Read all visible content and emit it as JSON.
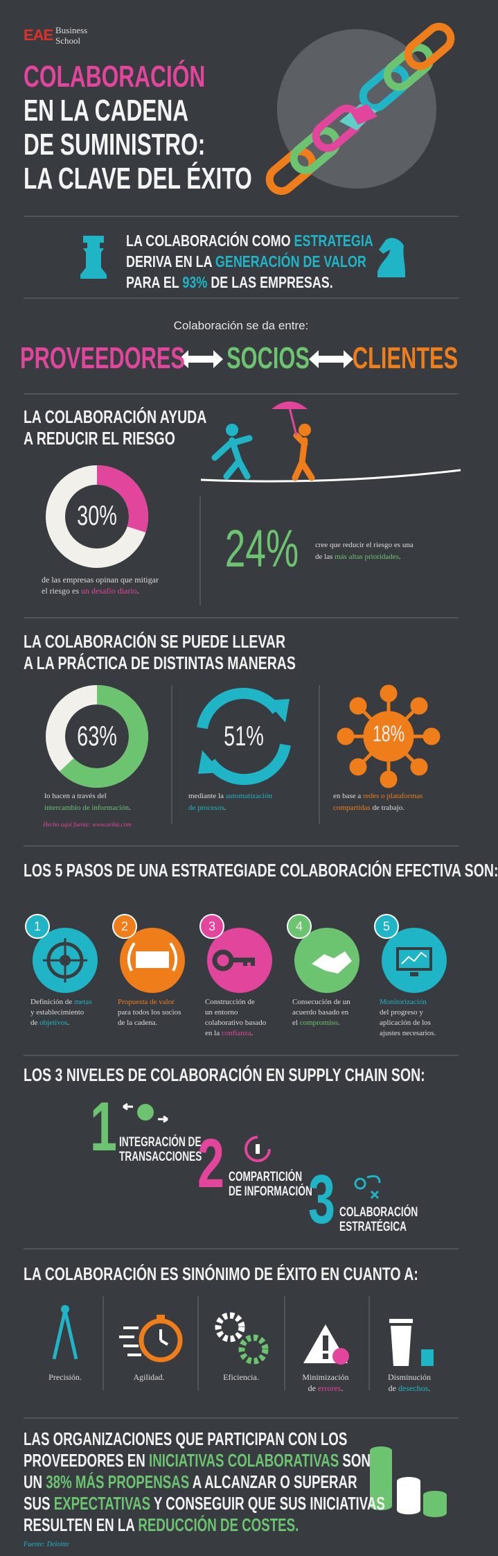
{
  "logo": {
    "brand": "EAE",
    "name_lines": [
      "Business",
      "School"
    ]
  },
  "title": {
    "lines": [
      "COLABORACIÓN",
      "EN LA CADENA",
      "DE SUMINISTRO:",
      "LA CLAVE DEL ÉXITO"
    ],
    "accent": "#e2459c"
  },
  "banner": {
    "lines": [
      [
        "LA COLABORACIÓN COMO ",
        {
          "text": "ESTRATEGIA",
          "color": "#1fb5c7"
        }
      ],
      [
        "DERIVA EN LA ",
        {
          "text": "GENERACIÓN DE VALOR",
          "color": "#1fb5c7"
        }
      ],
      [
        "PARA EL ",
        {
          "text": "93%",
          "color": "#1fb5c7"
        },
        " DE LAS EMPRESAS."
      ]
    ]
  },
  "partners": {
    "intro": "Colaboración se da entre:",
    "items": [
      {
        "text": "PROVEEDORES",
        "color": "#e2459c"
      },
      {
        "text": "SOCIOS",
        "color": "#6cc370"
      },
      {
        "text": "CLIENTES",
        "color": "#ef7d1a"
      }
    ]
  },
  "risk": {
    "heading": [
      "LA COLABORACIÓN AYUDA",
      "A REDUCIR EL RIESGO"
    ],
    "donut": {
      "value": 30,
      "label": "30%",
      "lim": [
        0,
        100
      ],
      "color": "#e2459c"
    },
    "donut_text": {
      "lines": [
        [
          "de las empresas opinan que mitigar"
        ],
        [
          "el riesgo es ",
          {
            "text": "un desafío diario",
            "color": "#e2459c"
          },
          "."
        ]
      ]
    },
    "stat": {
      "label": "24%",
      "color": "#6cc370"
    },
    "stat_text": {
      "lines": [
        [
          "cree que reducir el riesgo es una"
        ],
        [
          "de las ",
          {
            "text": "más altas prioridades",
            "color": "#6cc370"
          },
          "."
        ]
      ]
    }
  },
  "ways": {
    "heading": [
      "LA COLABORACIÓN SE PUEDE LLEVAR",
      "A LA PRÁCTICA DE DISTINTAS MANERAS"
    ],
    "items": [
      {
        "kind": "donut",
        "value": 63,
        "label": "63%",
        "lim": [
          0,
          100
        ],
        "color": "#6cc370",
        "lines": [
          [
            "lo hacen a través del"
          ],
          [
            {
              "text": "intercambio de información",
              "color": "#6cc370"
            },
            "."
          ]
        ]
      },
      {
        "kind": "cycle",
        "label": "51%",
        "color": "#1fb5c7",
        "lines": [
          [
            "mediante la ",
            {
              "text": "automatización",
              "color": "#1fb5c7"
            }
          ],
          [
            {
              "text": "de procesos",
              "color": "#1fb5c7"
            },
            "."
          ]
        ]
      },
      {
        "kind": "network",
        "label": "18%",
        "color": "#ef7d1a",
        "lines": [
          [
            "en base a ",
            {
              "text": "redes o plataformas",
              "color": "#ef7d1a"
            }
          ],
          [
            {
              "text": "compartidas",
              "color": "#ef7d1a"
            },
            " de trabajo."
          ]
        ]
      }
    ],
    "source": "Hecho aquí fuente: www.ariba.com"
  },
  "steps": {
    "heading": "LOS 5 PASOS DE UNA ESTRATEGIADE COLABORACIÓN EFECTIVA SON:",
    "items": [
      {
        "number": "1",
        "color": "#1fb5c7",
        "lines": [
          [
            "Definición de ",
            {
              "text": "metas",
              "color": "#1fb5c7"
            }
          ],
          [
            "y establecimiento"
          ],
          [
            "de ",
            {
              "text": "objetivos",
              "color": "#1fb5c7"
            },
            "."
          ]
        ]
      },
      {
        "number": "2",
        "color": "#ef7d1a",
        "lines": [
          [
            {
              "text": "Propuesta de valor",
              "color": "#ef7d1a"
            }
          ],
          [
            "para todos los socios"
          ],
          [
            "de la cadena."
          ]
        ]
      },
      {
        "number": "3",
        "color": "#e2459c",
        "lines": [
          [
            "Construcción de"
          ],
          [
            "un entorno"
          ],
          [
            "colaborativo basado"
          ],
          [
            "en la ",
            {
              "text": "confianza",
              "color": "#e2459c"
            },
            "."
          ]
        ]
      },
      {
        "number": "4",
        "color": "#6cc370",
        "lines": [
          [
            "Consecución de un"
          ],
          [
            "acuerdo basado en"
          ],
          [
            "el ",
            {
              "text": "compromiso",
              "color": "#6cc370"
            },
            "."
          ]
        ]
      },
      {
        "number": "5",
        "color": "#1fb5c7",
        "lines": [
          [
            {
              "text": "Monitorización",
              "color": "#1fb5c7"
            }
          ],
          [
            "del progreso y"
          ],
          [
            "aplicación de los"
          ],
          [
            "ajustes necesarios."
          ]
        ]
      }
    ]
  },
  "levels": {
    "heading": "LOS 3 NIVELES DE COLABORACIÓN EN SUPPLY CHAIN SON:",
    "items": [
      {
        "number": "1",
        "color": "#6cc370",
        "lines": [
          "INTEGRACIÓN DE",
          "TRANSACCIONES"
        ]
      },
      {
        "number": "2",
        "color": "#e2459c",
        "lines": [
          "COMPARTICIÓN",
          "DE INFORMACIÓN"
        ]
      },
      {
        "number": "3",
        "color": "#1fb5c7",
        "lines": [
          "COLABORACIÓN",
          "ESTRATÉGICA"
        ]
      }
    ]
  },
  "success": {
    "heading": "LA COLABORACIÓN ES SINÓNIMO DE ÉXITO EN CUANTO A:",
    "items": [
      {
        "lines": [
          [
            "Precisión."
          ]
        ]
      },
      {
        "lines": [
          [
            "Agilidad."
          ]
        ]
      },
      {
        "lines": [
          [
            "Eficiencia."
          ]
        ]
      },
      {
        "lines": [
          [
            "Minimización"
          ],
          [
            "de ",
            {
              "text": "errores",
              "color": "#e2459c"
            },
            "."
          ]
        ]
      },
      {
        "lines": [
          [
            "Disminución"
          ],
          [
            "de ",
            {
              "text": "desechos",
              "color": "#1fb5c7"
            },
            "."
          ]
        ]
      }
    ]
  },
  "closing": {
    "lines": [
      [
        "LAS ORGANIZACIONES QUE PARTICIPAN CON LOS"
      ],
      [
        "PROVEEDORES EN ",
        {
          "text": "INICIATIVAS COLABORATIVAS",
          "color": "#6cc370"
        },
        " SON"
      ],
      [
        "UN ",
        {
          "text": "38% MÁS PROPENSAS",
          "color": "#6cc370"
        },
        " A ALCANZAR O SUPERAR"
      ],
      [
        "SUS ",
        {
          "text": "EXPECTATIVAS",
          "color": "#6cc370"
        },
        " Y CONSEGUIR QUE SUS INICIATIVAS"
      ],
      [
        "RESULTEN EN LA ",
        {
          "text": "REDUCCIÓN DE COSTES.",
          "color": "#6cc370"
        }
      ]
    ],
    "source": "Fuente: Deloitte"
  }
}
